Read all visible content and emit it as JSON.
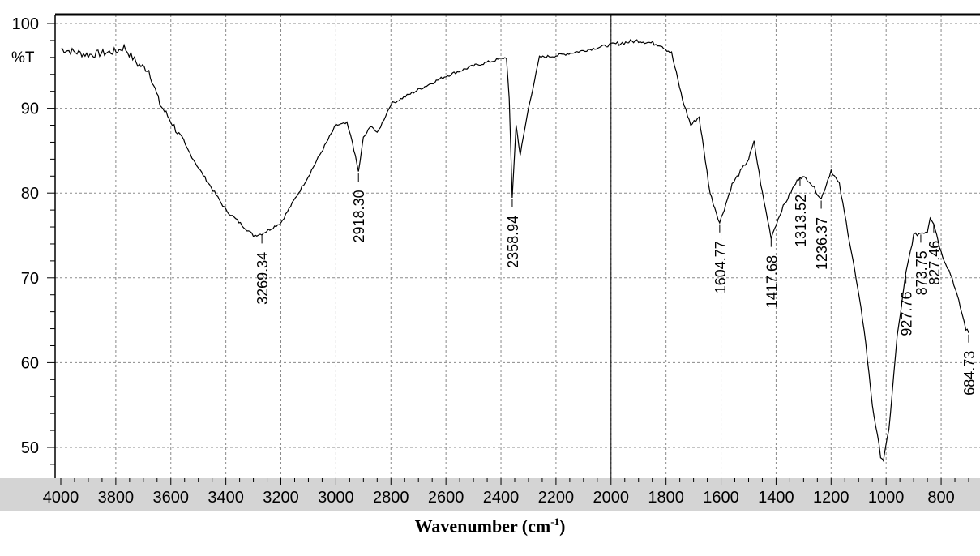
{
  "chart_data": {
    "type": "line",
    "ylabel": "%T",
    "xlabel_main": "Wavenumber (cm",
    "xlabel_sup": "-1",
    "xlabel_end": ")",
    "xlim": [
      4000,
      700
    ],
    "ylim": [
      46,
      101
    ],
    "x_ticks": [
      4000,
      3800,
      3600,
      3400,
      3200,
      3000,
      2800,
      2600,
      2400,
      2200,
      2000,
      1800,
      1600,
      1400,
      1200,
      1000,
      800
    ],
    "y_ticks": [
      50,
      60,
      70,
      80,
      90,
      100
    ],
    "grid": true,
    "series": [
      {
        "points": [
          [
            4000,
            97
          ],
          [
            3900,
            96.3
          ],
          [
            3800,
            96.7
          ],
          [
            3770,
            97.2
          ],
          [
            3720,
            95.2
          ],
          [
            3680,
            94.5
          ],
          [
            3640,
            90.5
          ],
          [
            3600,
            88.5
          ],
          [
            3500,
            83
          ],
          [
            3400,
            78
          ],
          [
            3300,
            75
          ],
          [
            3269,
            75.2
          ],
          [
            3200,
            76.5
          ],
          [
            3100,
            82
          ],
          [
            3000,
            88
          ],
          [
            2960,
            88.2
          ],
          [
            2940,
            86
          ],
          [
            2918,
            82.5
          ],
          [
            2900,
            86.5
          ],
          [
            2870,
            88
          ],
          [
            2850,
            87
          ],
          [
            2800,
            90.5
          ],
          [
            2700,
            92.2
          ],
          [
            2600,
            93.8
          ],
          [
            2500,
            95
          ],
          [
            2380,
            96
          ],
          [
            2370,
            91
          ],
          [
            2359,
            79.5
          ],
          [
            2345,
            88
          ],
          [
            2330,
            84.5
          ],
          [
            2300,
            90
          ],
          [
            2260,
            96
          ],
          [
            2200,
            96.2
          ],
          [
            2100,
            96.8
          ],
          [
            2000,
            97.5
          ],
          [
            1900,
            98
          ],
          [
            1820,
            97.5
          ],
          [
            1780,
            96.5
          ],
          [
            1740,
            91
          ],
          [
            1710,
            88
          ],
          [
            1680,
            89
          ],
          [
            1640,
            80
          ],
          [
            1605,
            76.5
          ],
          [
            1560,
            81
          ],
          [
            1500,
            84
          ],
          [
            1480,
            86
          ],
          [
            1450,
            80
          ],
          [
            1418,
            74.8
          ],
          [
            1380,
            78
          ],
          [
            1340,
            80.5
          ],
          [
            1313,
            82
          ],
          [
            1280,
            81.5
          ],
          [
            1236,
            79.3
          ],
          [
            1200,
            82.7
          ],
          [
            1170,
            81
          ],
          [
            1120,
            72
          ],
          [
            1080,
            64
          ],
          [
            1050,
            55
          ],
          [
            1020,
            49
          ],
          [
            1010,
            48.5
          ],
          [
            990,
            52
          ],
          [
            960,
            63
          ],
          [
            928,
            70.5
          ],
          [
            900,
            75
          ],
          [
            874,
            75.3
          ],
          [
            850,
            75.5
          ],
          [
            840,
            77.2
          ],
          [
            827,
            76.5
          ],
          [
            800,
            73
          ],
          [
            760,
            70
          ],
          [
            730,
            66.5
          ],
          [
            710,
            64
          ],
          [
            700,
            63.5
          ]
        ]
      }
    ],
    "peak_labels": [
      "3269.34",
      "2918.30",
      "2358.94",
      "1604.77",
      "1417.68",
      "1313.52",
      "1236.37",
      "927.76",
      "873.75",
      "827.46",
      "684.73"
    ],
    "peaks": [
      {
        "label": "3269.34",
        "x": 3269,
        "y": 75.2
      },
      {
        "label": "2918.30",
        "x": 2918,
        "y": 82.5
      },
      {
        "label": "2358.94",
        "x": 2359,
        "y": 79.5
      },
      {
        "label": "1604.77",
        "x": 1605,
        "y": 76.5
      },
      {
        "label": "1417.68",
        "x": 1418,
        "y": 74.8
      },
      {
        "label": "1313.52",
        "x": 1313,
        "y": 82
      },
      {
        "label": "1236.37",
        "x": 1236,
        "y": 79.3
      },
      {
        "label": "927.76",
        "x": 928,
        "y": 70.5
      },
      {
        "label": "873.75",
        "x": 874,
        "y": 75.3
      },
      {
        "label": "827.46",
        "x": 827,
        "y": 76.5
      },
      {
        "label": "684.73",
        "x": 700,
        "y": 63.5
      }
    ],
    "marker_x": 2000
  }
}
